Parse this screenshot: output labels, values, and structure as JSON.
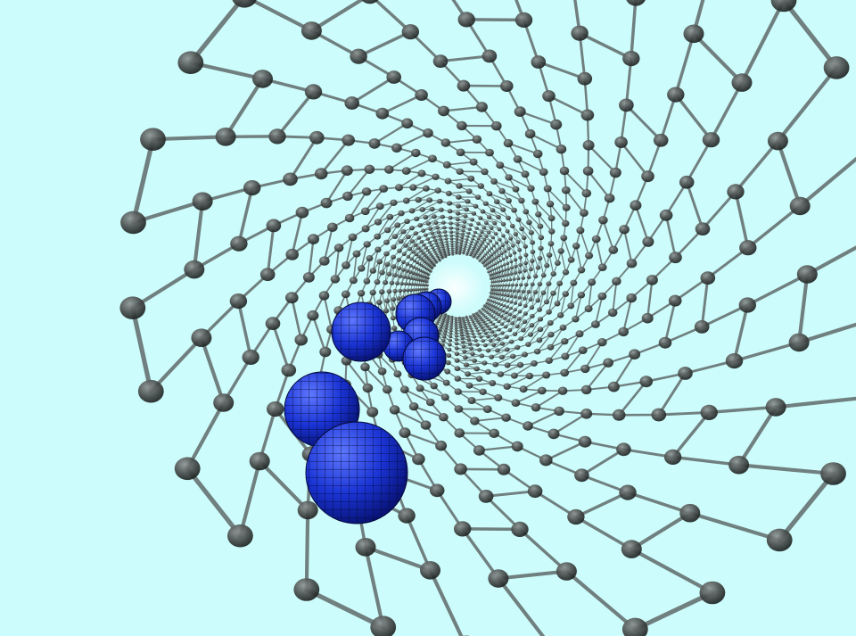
{
  "scene": {
    "subject": "carbon-nanotube-interior",
    "colors": {
      "background": "#ccfcfb",
      "atom": "#4a4f4e",
      "atom_dark": "#1c2120",
      "atom_highlight": "#8e9594",
      "bond": "#5f6968",
      "bond_highlight": "#9aa3a2",
      "fullerene": "#1a34d6",
      "fullerene_dark": "#071170",
      "fullerene_light": "#5f78ff",
      "fullerene_mesh": "#050a3a"
    }
  }
}
